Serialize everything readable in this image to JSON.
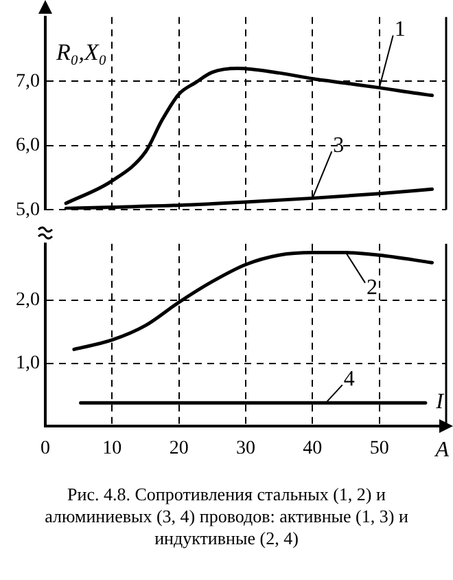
{
  "chart_data": [
    {
      "type": "line",
      "xlim": [
        0,
        60
      ],
      "xticks": [
        0,
        10,
        20,
        30,
        40,
        50
      ],
      "ylim": [
        5,
        8
      ],
      "yticks": [
        {
          "value": 5,
          "label": "5,0"
        },
        {
          "value": 6,
          "label": "6,0"
        },
        {
          "value": 7,
          "label": "7,0"
        }
      ],
      "ylabel": "R₀,X₀",
      "tick_labels": "y",
      "grid": true,
      "marker": "none",
      "line_style": "solid",
      "series": [
        {
          "name": "1",
          "color": "#000000",
          "x": [
            3.1,
            10,
            15,
            17.5,
            20,
            22.5,
            25,
            28.8,
            35,
            40,
            45,
            50,
            55,
            57.9
          ],
          "values": [
            5.1,
            5.45,
            5.9,
            6.4,
            6.8,
            6.98,
            7.14,
            7.2,
            7.13,
            7.04,
            6.97,
            6.9,
            6.82,
            6.78
          ]
        },
        {
          "name": "3",
          "color": "#000000",
          "x": [
            3.1,
            10,
            20,
            30,
            40,
            50,
            57.9
          ],
          "values": [
            5.02,
            5.04,
            5.07,
            5.12,
            5.18,
            5.25,
            5.32
          ]
        }
      ]
    },
    {
      "type": "line",
      "xlim": [
        0,
        60
      ],
      "xticks": [
        0,
        10,
        20,
        30,
        40,
        50
      ],
      "ylim": [
        0,
        2.9
      ],
      "yticks": [
        {
          "value": 1,
          "label": "1,0"
        },
        {
          "value": 2,
          "label": "2,0"
        }
      ],
      "xlabel": "A",
      "grid": true,
      "marker": "none",
      "line_style": "solid",
      "annotations": [
        "I",
        "Рис. 4.8. Сопротивления стальных (1, 2) и алюминиевых (3, 4) проводов: активные (1, 3) и индуктивные (2, 4)"
      ],
      "series": [
        {
          "name": "2",
          "color": "#000000",
          "x": [
            4.3,
            10,
            15,
            20,
            25,
            30,
            35,
            40,
            45,
            50,
            57.9
          ],
          "values": [
            1.22,
            1.37,
            1.6,
            1.97,
            2.3,
            2.57,
            2.72,
            2.76,
            2.76,
            2.72,
            2.6
          ]
        },
        {
          "name": "4",
          "color": "#000000",
          "x": [
            5.3,
            56.9
          ],
          "values": [
            0.37,
            0.37
          ]
        }
      ]
    }
  ]
}
